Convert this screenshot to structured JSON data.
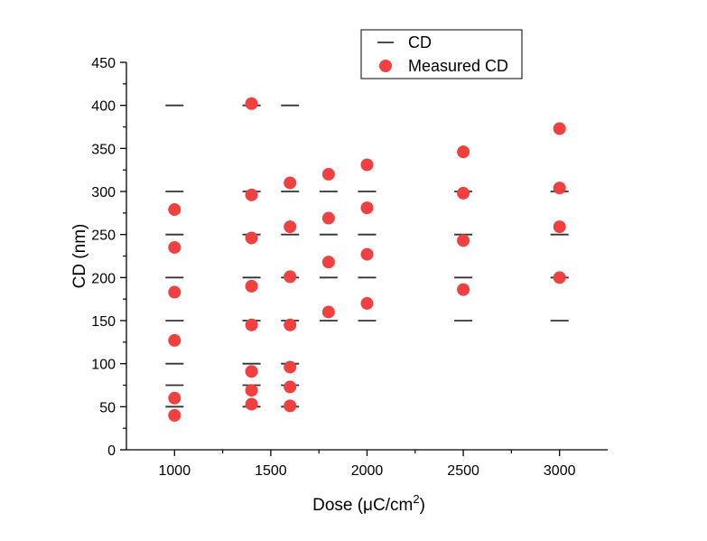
{
  "chart_data": {
    "type": "scatter",
    "xlabel": "Dose (μC/cm",
    "xlabel_sup": "2",
    "xlabel_close": ")",
    "ylabel": "CD (nm)",
    "xlim": [
      750,
      3250
    ],
    "ylim": [
      0,
      450
    ],
    "xticks": [
      1000,
      1500,
      2000,
      2500,
      3000
    ],
    "yticks": [
      0,
      50,
      100,
      150,
      200,
      250,
      300,
      350,
      400,
      450
    ],
    "legend_position": "top-right",
    "series": [
      {
        "name": "CD",
        "marker": "dash",
        "color": "#333333",
        "points": [
          {
            "x": 1000,
            "y": 400
          },
          {
            "x": 1000,
            "y": 300
          },
          {
            "x": 1000,
            "y": 250
          },
          {
            "x": 1000,
            "y": 200
          },
          {
            "x": 1000,
            "y": 150
          },
          {
            "x": 1000,
            "y": 100
          },
          {
            "x": 1000,
            "y": 75
          },
          {
            "x": 1000,
            "y": 50
          },
          {
            "x": 1400,
            "y": 400
          },
          {
            "x": 1400,
            "y": 300
          },
          {
            "x": 1400,
            "y": 250
          },
          {
            "x": 1400,
            "y": 200
          },
          {
            "x": 1400,
            "y": 150
          },
          {
            "x": 1400,
            "y": 100
          },
          {
            "x": 1400,
            "y": 75
          },
          {
            "x": 1400,
            "y": 50
          },
          {
            "x": 1600,
            "y": 400
          },
          {
            "x": 1600,
            "y": 300
          },
          {
            "x": 1600,
            "y": 250
          },
          {
            "x": 1600,
            "y": 200
          },
          {
            "x": 1600,
            "y": 150
          },
          {
            "x": 1600,
            "y": 100
          },
          {
            "x": 1600,
            "y": 75
          },
          {
            "x": 1600,
            "y": 50
          },
          {
            "x": 1800,
            "y": 300
          },
          {
            "x": 1800,
            "y": 250
          },
          {
            "x": 1800,
            "y": 200
          },
          {
            "x": 1800,
            "y": 150
          },
          {
            "x": 2000,
            "y": 300
          },
          {
            "x": 2000,
            "y": 250
          },
          {
            "x": 2000,
            "y": 200
          },
          {
            "x": 2000,
            "y": 150
          },
          {
            "x": 2500,
            "y": 300
          },
          {
            "x": 2500,
            "y": 250
          },
          {
            "x": 2500,
            "y": 200
          },
          {
            "x": 2500,
            "y": 150
          },
          {
            "x": 3000,
            "y": 300
          },
          {
            "x": 3000,
            "y": 250
          },
          {
            "x": 3000,
            "y": 200
          },
          {
            "x": 3000,
            "y": 150
          }
        ]
      },
      {
        "name": "Measured CD",
        "marker": "circle",
        "color": "#f04040",
        "points": [
          {
            "x": 1000,
            "y": 279
          },
          {
            "x": 1000,
            "y": 235
          },
          {
            "x": 1000,
            "y": 183
          },
          {
            "x": 1000,
            "y": 127
          },
          {
            "x": 1000,
            "y": 60
          },
          {
            "x": 1000,
            "y": 40
          },
          {
            "x": 1400,
            "y": 402
          },
          {
            "x": 1400,
            "y": 296
          },
          {
            "x": 1400,
            "y": 246
          },
          {
            "x": 1400,
            "y": 190
          },
          {
            "x": 1400,
            "y": 145
          },
          {
            "x": 1400,
            "y": 91
          },
          {
            "x": 1400,
            "y": 69
          },
          {
            "x": 1400,
            "y": 53
          },
          {
            "x": 1600,
            "y": 310
          },
          {
            "x": 1600,
            "y": 259
          },
          {
            "x": 1600,
            "y": 201
          },
          {
            "x": 1600,
            "y": 145
          },
          {
            "x": 1600,
            "y": 96
          },
          {
            "x": 1600,
            "y": 73
          },
          {
            "x": 1600,
            "y": 51
          },
          {
            "x": 1800,
            "y": 320
          },
          {
            "x": 1800,
            "y": 269
          },
          {
            "x": 1800,
            "y": 218
          },
          {
            "x": 1800,
            "y": 160
          },
          {
            "x": 2000,
            "y": 331
          },
          {
            "x": 2000,
            "y": 281
          },
          {
            "x": 2000,
            "y": 227
          },
          {
            "x": 2000,
            "y": 170
          },
          {
            "x": 2500,
            "y": 346
          },
          {
            "x": 2500,
            "y": 298
          },
          {
            "x": 2500,
            "y": 243
          },
          {
            "x": 2500,
            "y": 186
          },
          {
            "x": 3000,
            "y": 373
          },
          {
            "x": 3000,
            "y": 304
          },
          {
            "x": 3000,
            "y": 259
          },
          {
            "x": 3000,
            "y": 200
          }
        ]
      }
    ]
  }
}
